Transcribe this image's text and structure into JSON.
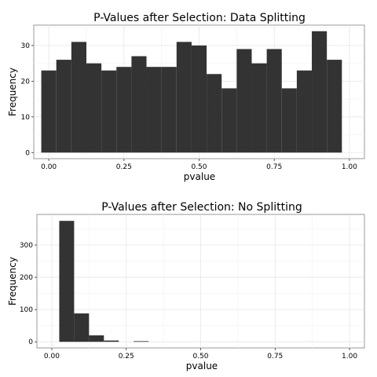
{
  "chart_data": [
    {
      "type": "bar",
      "title": "P-Values after Selection: Data Splitting",
      "xlabel": "pvalue",
      "ylabel": "Frequency",
      "bin_width": 0.05,
      "bin_centers": [
        0.0,
        0.05,
        0.1,
        0.15,
        0.2,
        0.25,
        0.3,
        0.35,
        0.4,
        0.45,
        0.5,
        0.55,
        0.6,
        0.65,
        0.7,
        0.75,
        0.8,
        0.85,
        0.9,
        0.95,
        1.0
      ],
      "values": [
        23,
        26,
        31,
        25,
        23,
        24,
        27,
        24,
        24,
        31,
        30,
        22,
        18,
        29,
        25,
        29,
        18,
        23,
        34,
        26,
        0
      ],
      "xlim": [
        -0.05,
        1.05
      ],
      "ylim": [
        -1.7,
        35.7
      ],
      "x_ticks": [
        0,
        0.25,
        0.5,
        0.75,
        1
      ],
      "x_tick_labels": [
        "0.00",
        "0.25",
        "0.50",
        "0.75",
        "1.00"
      ],
      "y_ticks": [
        0,
        10,
        20,
        30
      ],
      "y_tick_labels": [
        "0",
        "10",
        "20",
        "30"
      ],
      "grid": true,
      "bar_color": "#333333"
    },
    {
      "type": "bar",
      "title": "P-Values after Selection: No Splitting",
      "xlabel": "pvalue",
      "ylabel": "Frequency",
      "bin_width": 0.05,
      "bin_centers": [
        0.0,
        0.05,
        0.1,
        0.15,
        0.2,
        0.25,
        0.3,
        0.35,
        0.4,
        0.45,
        0.5,
        0.55,
        0.6,
        0.65,
        0.7,
        0.75,
        0.8,
        0.85,
        0.9,
        0.95,
        1.0
      ],
      "values": [
        0,
        375,
        88,
        20,
        4,
        0,
        2,
        0,
        0,
        0,
        0,
        0,
        0,
        0,
        0,
        0,
        0,
        0,
        0,
        0,
        0
      ],
      "xlim": [
        -0.05,
        1.05
      ],
      "ylim": [
        -19,
        395
      ],
      "x_ticks": [
        0,
        0.25,
        0.5,
        0.75,
        1
      ],
      "x_tick_labels": [
        "0.00",
        "0.25",
        "0.50",
        "0.75",
        "1.00"
      ],
      "y_ticks": [
        0,
        100,
        200,
        300
      ],
      "y_tick_labels": [
        "0",
        "100",
        "200",
        "300"
      ],
      "grid": true,
      "bar_color": "#333333"
    }
  ]
}
